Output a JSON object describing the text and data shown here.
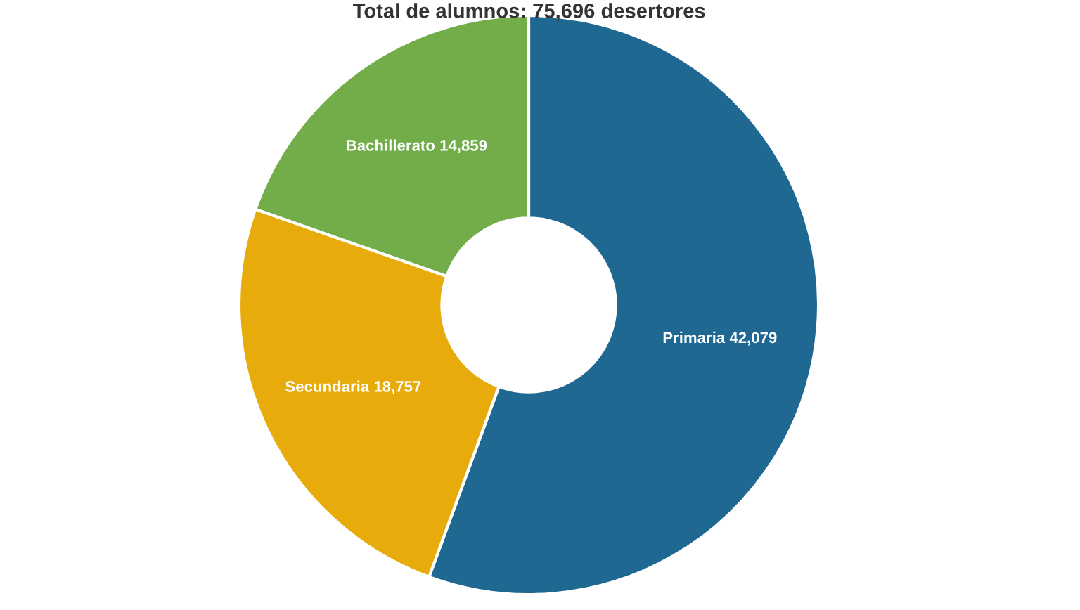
{
  "chart_data": {
    "type": "donut",
    "title": "Total de alumnos: 75,696 desertores",
    "categories": [
      "Primaria",
      "Secundaria",
      "Bachillerato"
    ],
    "values": [
      42079,
      18757,
      14859
    ],
    "colors": [
      "#1f6891",
      "#e8ab0c",
      "#72ad4a"
    ],
    "value_labels": [
      "42,079",
      "18,757",
      "14,859"
    ],
    "legend": false
  }
}
